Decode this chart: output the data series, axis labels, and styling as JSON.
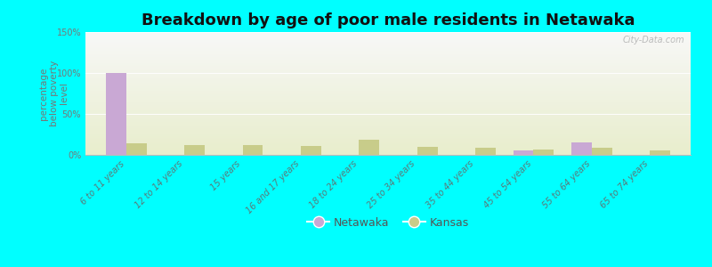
{
  "title": "Breakdown by age of poor male residents in Netawaka",
  "categories": [
    "6 to 11 years",
    "12 to 14 years",
    "15 years",
    "16 and 17 years",
    "18 to 24 years",
    "25 to 34 years",
    "35 to 44 years",
    "45 to 54 years",
    "55 to 64 years",
    "65 to 74 years"
  ],
  "netawaka_values": [
    100,
    0,
    0,
    0,
    0,
    0,
    0,
    5,
    15,
    0
  ],
  "kansas_values": [
    14,
    12,
    12,
    11,
    18,
    10,
    9,
    7,
    9,
    5
  ],
  "netawaka_color": "#c9a8d4",
  "kansas_color": "#c8cc8a",
  "ylim": [
    0,
    150
  ],
  "yticks": [
    0,
    50,
    100,
    150
  ],
  "ytick_labels": [
    "0%",
    "50%",
    "100%",
    "150%"
  ],
  "ylabel": "percentage\nbelow poverty\nlevel",
  "background_color": "#00ffff",
  "bar_width": 0.35,
  "title_fontsize": 13,
  "axis_label_fontsize": 7.5,
  "tick_fontsize": 7,
  "xtick_color": "#5a7a7a",
  "ytick_color": "#777777",
  "legend_label_netawaka": "Netawaka",
  "legend_label_kansas": "Kansas",
  "watermark": "City-Data.com"
}
